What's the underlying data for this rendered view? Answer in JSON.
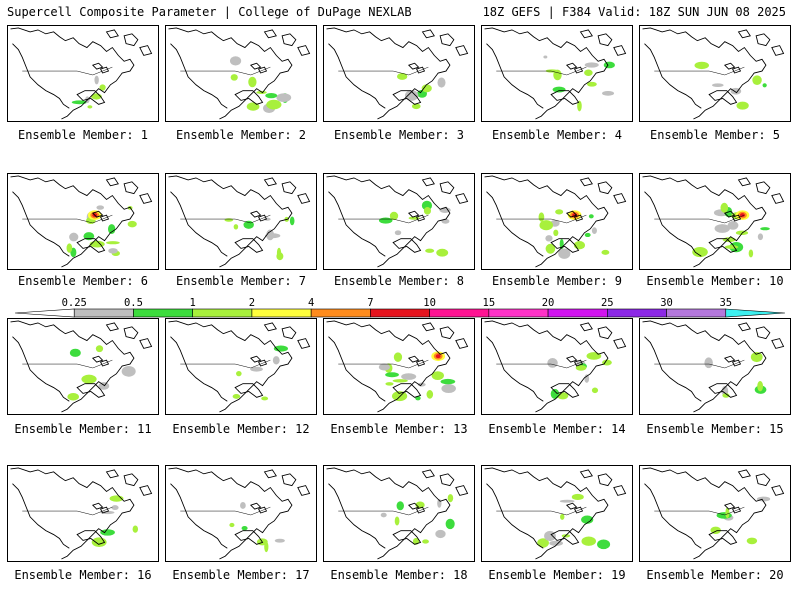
{
  "header": {
    "left": "Supercell Composite Parameter | College of DuPage NEXLAB",
    "right": "18Z GEFS | F384 Valid: 18Z SUN JUN 08 2025"
  },
  "caption_prefix": "Ensemble Member:",
  "members": [
    {
      "number": 1,
      "activity": "low"
    },
    {
      "number": 2,
      "activity": "moderate"
    },
    {
      "number": 3,
      "activity": "low"
    },
    {
      "number": 4,
      "activity": "moderate"
    },
    {
      "number": 5,
      "activity": "low"
    },
    {
      "number": 6,
      "activity": "high"
    },
    {
      "number": 7,
      "activity": "moderate"
    },
    {
      "number": 8,
      "activity": "moderate"
    },
    {
      "number": 9,
      "activity": "high"
    },
    {
      "number": 10,
      "activity": "high"
    },
    {
      "number": 11,
      "activity": "low"
    },
    {
      "number": 12,
      "activity": "low"
    },
    {
      "number": 13,
      "activity": "high"
    },
    {
      "number": 14,
      "activity": "moderate"
    },
    {
      "number": 15,
      "activity": "low"
    },
    {
      "number": 16,
      "activity": "low"
    },
    {
      "number": 17,
      "activity": "low"
    },
    {
      "number": 18,
      "activity": "moderate"
    },
    {
      "number": 19,
      "activity": "moderate"
    },
    {
      "number": 20,
      "activity": "low"
    }
  ],
  "colorbar": {
    "labels": [
      "0.25",
      "0.5",
      "1",
      "2",
      "4",
      "7",
      "10",
      "15",
      "20",
      "25",
      "30",
      "35"
    ],
    "colors": [
      "#ffffff",
      "#bfbfbf",
      "#3ddc3d",
      "#a8f03c",
      "#ffff3c",
      "#ff8c1e",
      "#e6141e",
      "#ff1493",
      "#ff32c8",
      "#d214f0",
      "#8c28e6",
      "#b478dc",
      "#3cf0f0"
    ]
  }
}
